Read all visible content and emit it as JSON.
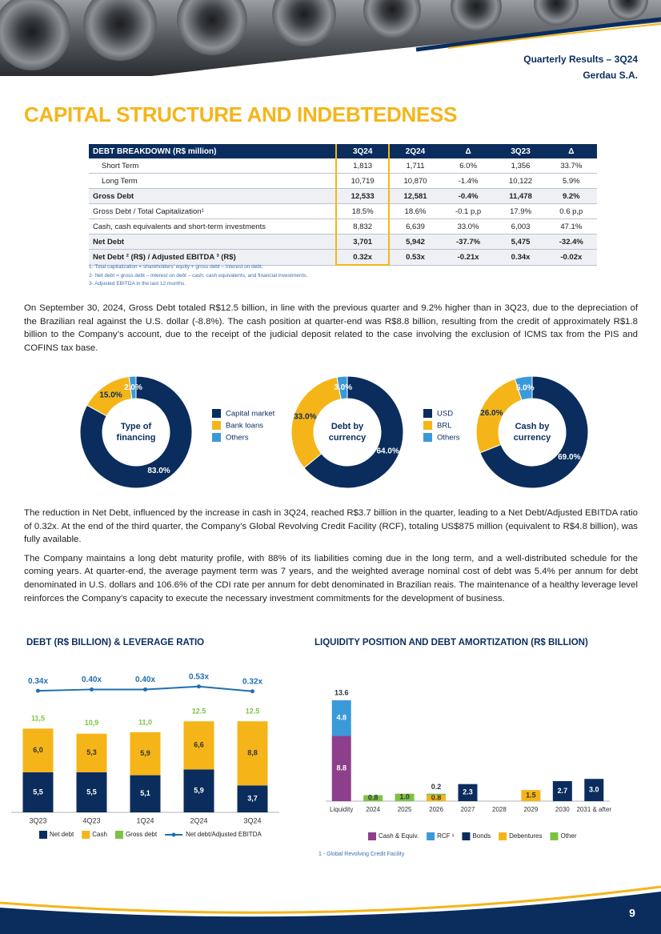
{
  "header": {
    "report": "Quarterly Results – 3Q24",
    "company": "Gerdau S.A."
  },
  "title": "CAPITAL STRUCTURE AND INDEBTEDNESS",
  "table": {
    "header": [
      "DEBT BREAKDOWN (R$ million)",
      "3Q24",
      "2Q24",
      "Δ",
      "3Q23",
      "Δ"
    ],
    "rows": [
      [
        "Short Term",
        "1,813",
        "1,711",
        "6.0%",
        "1,356",
        "33.7%"
      ],
      [
        "Long Term",
        "10,719",
        "10,870",
        "-1.4%",
        "10,122",
        "5.9%"
      ],
      [
        "Gross Debt",
        "12,533",
        "12,581",
        "-0.4%",
        "11,478",
        "9.2%"
      ],
      [
        "Gross Debt / Total Capitalization¹",
        "18.5%",
        "18.6%",
        "-0.1 p,p",
        "17.9%",
        "0.6 p,p"
      ],
      [
        "Cash, cash equivalents and short-term investments",
        "8,832",
        "6,639",
        "33.0%",
        "6,003",
        "47.1%"
      ],
      [
        "Net Debt",
        "3,701",
        "5,942",
        "-37.7%",
        "5,475",
        "-32.4%"
      ],
      [
        "Net Debt ² (R$) / Adjusted EBITDA ³ (R$)",
        "0.32x",
        "0.53x",
        "-0.21x",
        "0.34x",
        "-0.02x"
      ]
    ],
    "footnotes": [
      "1- Total capitalization = shareholders' equity + gross debt – interest on debt.",
      "2- Net debt = gross debt – interest on debt – cash, cash equivalents, and financial investments.",
      "3- Adjusted EBITDA in the last 12 months."
    ]
  },
  "paragraphs": [
    "On September 30, 2024, Gross Debt totaled R$12.5 billion, in line with the previous quarter and 9.2% higher than in 3Q23, due to the depreciation of the Brazilian real against the U.S. dollar (-8.8%). The cash position at quarter-end was R$8.8 billion, resulting from the credit of approximately R$1.8 billion to the Company’s account, due to the receipt of the judicial deposit related to the case involving the exclusion of ICMS tax from the PIS and COFINS tax base.",
    "The reduction in Net Debt, influenced by the increase in cash in 3Q24, reached R$3.7 billion in the quarter, leading to a Net Debt/Adjusted EBITDA ratio of 0.32x. At the end of the third quarter, the Company’s Global Revolving Credit Facility (RCF), totaling US$875 million (equivalent to R$4.8 billion), was fully available.",
    "The Company maintains a long debt maturity profile, with 88% of its liabilities coming due in the long term, and a well-distributed schedule for the coming years. At quarter-end, the average payment term was 7 years, and the weighted average nominal cost of debt was 5.4% per annum for debt denominated in U.S. dollars and 106.6% of the CDI rate per annum for debt denominated in Brazilian reais. The maintenance of a healthy leverage level reinforces the Company’s capacity to execute the necessary investment commitments for the development of business."
  ],
  "chart_data": [
    {
      "type": "pie",
      "center_label": [
        "Type of",
        "financing"
      ],
      "categories": [
        "Capital market",
        "Bank loans",
        "Others"
      ],
      "values": [
        83,
        15,
        2
      ],
      "value_labels": [
        "83.0%",
        "15.0%",
        "2.0%"
      ],
      "colors": [
        "#0a2d5e",
        "#f5b519",
        "#3a9ad9"
      ]
    },
    {
      "type": "pie",
      "center_label": [
        "Debt by",
        "currency"
      ],
      "categories": [
        "USD",
        "BRL",
        "Others"
      ],
      "values": [
        64,
        33,
        3
      ],
      "value_labels": [
        "64.0%",
        "33.0%",
        "3.0%"
      ],
      "colors": [
        "#0a2d5e",
        "#f5b519",
        "#3a9ad9"
      ]
    },
    {
      "type": "pie",
      "center_label": [
        "Cash by",
        "currency"
      ],
      "values": [
        69,
        26,
        5
      ],
      "value_labels": [
        "69.0%",
        "26.0%",
        "5.0%"
      ],
      "colors": [
        "#0a2d5e",
        "#f5b519",
        "#3a9ad9"
      ]
    },
    {
      "type": "bar",
      "title": "DEBT (R$ BILLION) & LEVERAGE RATIO",
      "categories": [
        "3Q23",
        "4Q23",
        "1Q24",
        "2Q24",
        "3Q24"
      ],
      "ylim": [
        0,
        20
      ],
      "y2lim": [
        -5,
        1.4
      ],
      "series": [
        {
          "name": "Net debt",
          "color": "#0a2d5e",
          "values": [
            5.5,
            5.5,
            5.1,
            5.9,
            3.7
          ],
          "value_labels": [
            "5,5",
            "5,5",
            "5,1",
            "5,9",
            "3,7"
          ]
        },
        {
          "name": "Cash",
          "color": "#f5b519",
          "values": [
            6.0,
            5.3,
            5.9,
            6.6,
            8.8
          ],
          "value_labels": [
            "6,0",
            "5,3",
            "5,9",
            "6,6",
            "8,8"
          ]
        },
        {
          "name": "Gross debt",
          "type": "label",
          "color": "#7dc242",
          "values": [
            11.5,
            10.9,
            11.0,
            12.5,
            12.5
          ],
          "value_labels": [
            "11,5",
            "10,9",
            "11,0",
            "12.5",
            "12.5"
          ]
        },
        {
          "name": "Net debt/Adjusted EBITDA",
          "type": "line",
          "axis": "y2",
          "color": "#1f6fb2",
          "values": [
            0.34,
            0.4,
            0.4,
            0.53,
            0.32
          ],
          "value_labels": [
            "0.34x",
            "0.40x",
            "0.40x",
            "0.53x",
            "0.32x"
          ]
        }
      ]
    },
    {
      "type": "bar",
      "title": "LIQUIDITY POSITION AND DEBT AMORTIZATION (R$ BILLION)",
      "categories": [
        "Liquidity",
        "2024",
        "2025",
        "2026",
        "2027",
        "2028",
        "2029",
        "2030",
        "2031 & after"
      ],
      "ylim": [
        0,
        15
      ],
      "totals": [
        13.6,
        null,
        null,
        null,
        null,
        null,
        null,
        null,
        null
      ],
      "series": [
        {
          "name": "Cash & Equiv.",
          "color": "#8e3f8c",
          "values": [
            8.8,
            null,
            null,
            null,
            null,
            null,
            null,
            null,
            null
          ],
          "value_labels": [
            "8.8",
            null,
            null,
            null,
            null,
            null,
            null,
            null,
            null
          ]
        },
        {
          "name": "RCF ¹",
          "color": "#3a9ad9",
          "values": [
            4.8,
            null,
            null,
            null,
            null,
            null,
            null,
            null,
            null
          ],
          "value_labels": [
            "4.8",
            null,
            null,
            null,
            null,
            null,
            null,
            null,
            null
          ]
        },
        {
          "name": "Bonds",
          "color": "#0a2d5e",
          "values": [
            null,
            null,
            null,
            null,
            2.3,
            null,
            null,
            2.7,
            3.0
          ],
          "value_labels": [
            null,
            null,
            null,
            null,
            "2.3",
            null,
            null,
            "2.7",
            "3.0"
          ]
        },
        {
          "name": "Debentures",
          "color": "#f5b519",
          "values": [
            null,
            null,
            null,
            0.8,
            null,
            null,
            1.5,
            null,
            null
          ],
          "value_labels": [
            null,
            null,
            null,
            "0.8",
            null,
            null,
            "1.5",
            null,
            null
          ]
        },
        {
          "name": "Other",
          "color": "#7dc242",
          "values": [
            null,
            0.8,
            1.0,
            0.2,
            null,
            null,
            null,
            null,
            null
          ],
          "value_labels": [
            null,
            "0.8",
            "1.0",
            "0.2",
            null,
            null,
            null,
            null,
            null
          ]
        }
      ],
      "footnote": "1 - Global Revolving Credit Facility"
    }
  ],
  "page_number": "9"
}
